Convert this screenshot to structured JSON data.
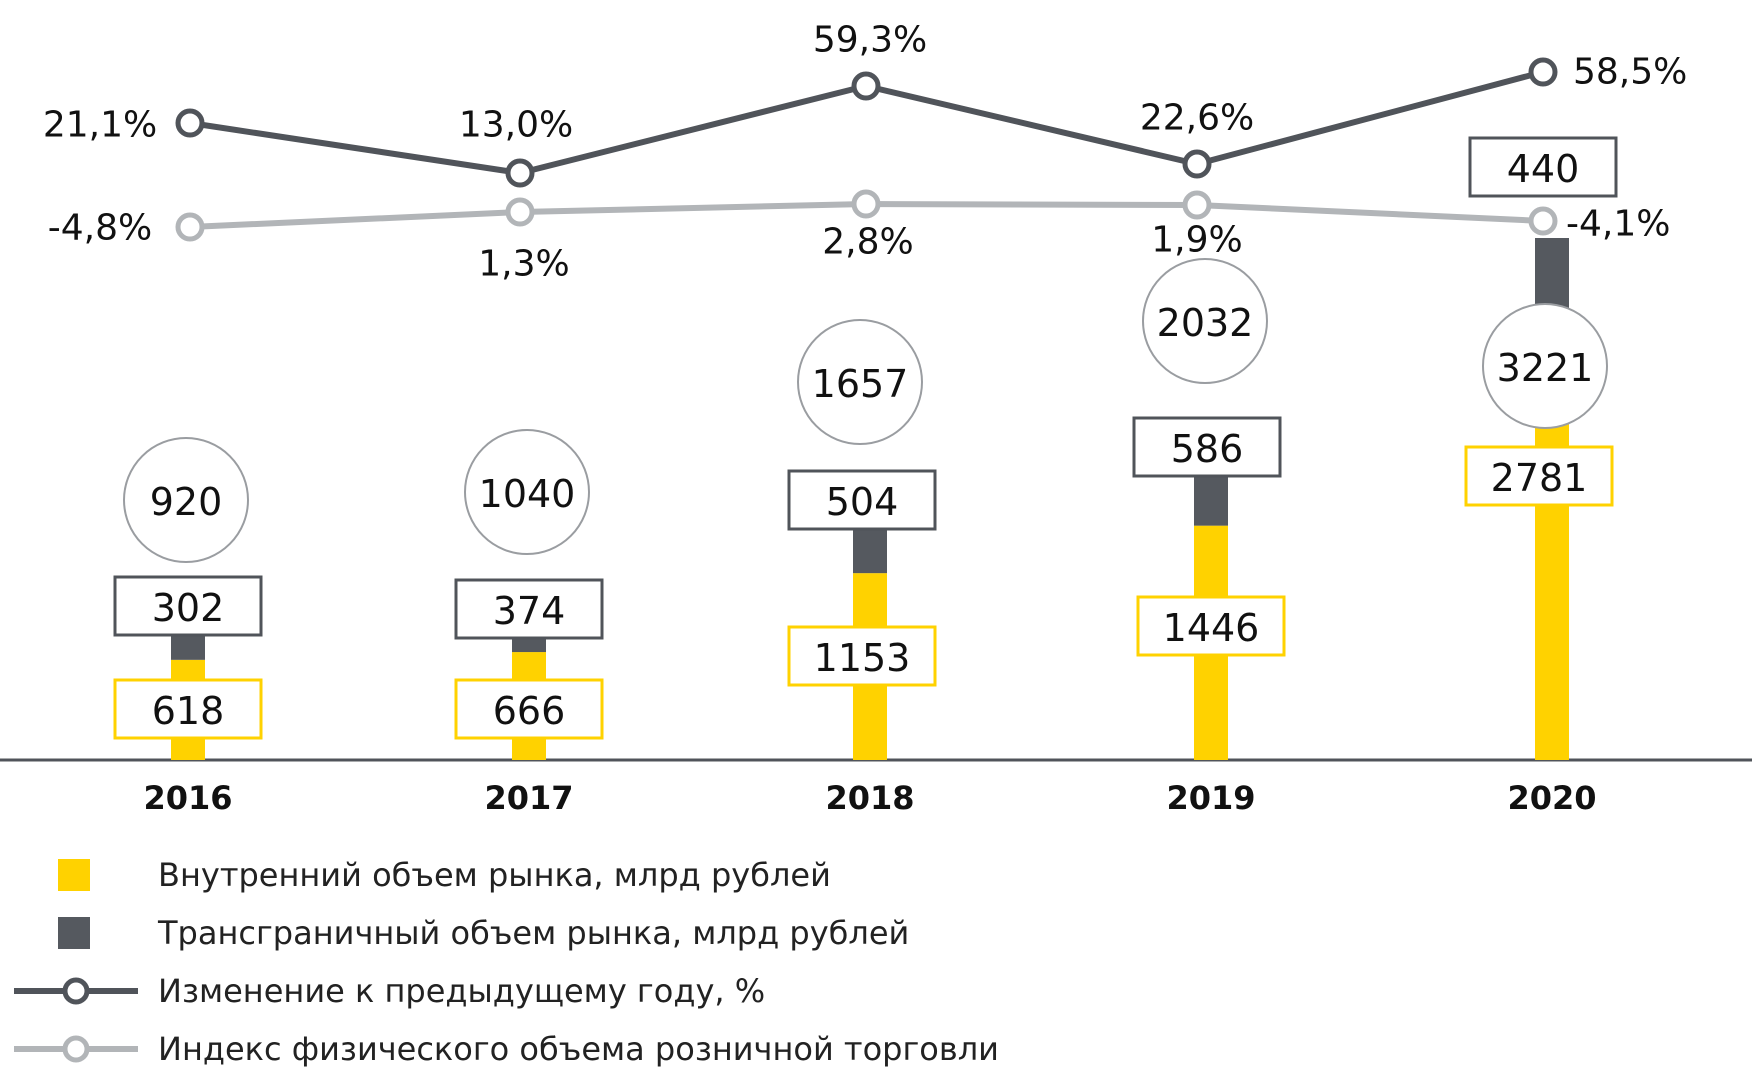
{
  "chart_data": {
    "type": "bar",
    "categories": [
      "2016",
      "2017",
      "2018",
      "2019",
      "2020"
    ],
    "series": [
      {
        "name": "Внутренний объем рынка, млрд рублей",
        "kind": "stacked-bar",
        "color": "#FFD200",
        "values": [
          618,
          666,
          1153,
          1446,
          2781
        ],
        "labels": [
          "618",
          "666",
          "1153",
          "1446",
          "2781"
        ]
      },
      {
        "name": "Трансграничный объем рынка, млрд рублей",
        "kind": "stacked-bar",
        "color": "#55595F",
        "values": [
          302,
          374,
          504,
          586,
          440
        ],
        "labels": [
          "302",
          "374",
          "504",
          "586",
          "440"
        ]
      },
      {
        "name": "Изменение к предыдущему году, %",
        "kind": "line",
        "color": "#50545A",
        "values": [
          21.1,
          13.0,
          59.3,
          22.6,
          58.5
        ],
        "labels": [
          "21,1%",
          "13,0%",
          "59,3%",
          "22,6%",
          "58,5%"
        ]
      },
      {
        "name": "Индекс физического объема розничной торговли",
        "kind": "line",
        "color": "#B2B5B8",
        "values": [
          -4.8,
          1.3,
          2.8,
          1.9,
          -4.1
        ],
        "labels": [
          "-4,8%",
          "1,3%",
          "2,8%",
          "1,9%",
          "-4,1%"
        ]
      }
    ],
    "totals": [
      920,
      1040,
      1657,
      2032,
      3221
    ],
    "total_labels": [
      "920",
      "1040",
      "1657",
      "2032",
      "3221"
    ],
    "ylim": [
      0,
      3221
    ],
    "grid": false,
    "legend_position": "bottom-left"
  }
}
